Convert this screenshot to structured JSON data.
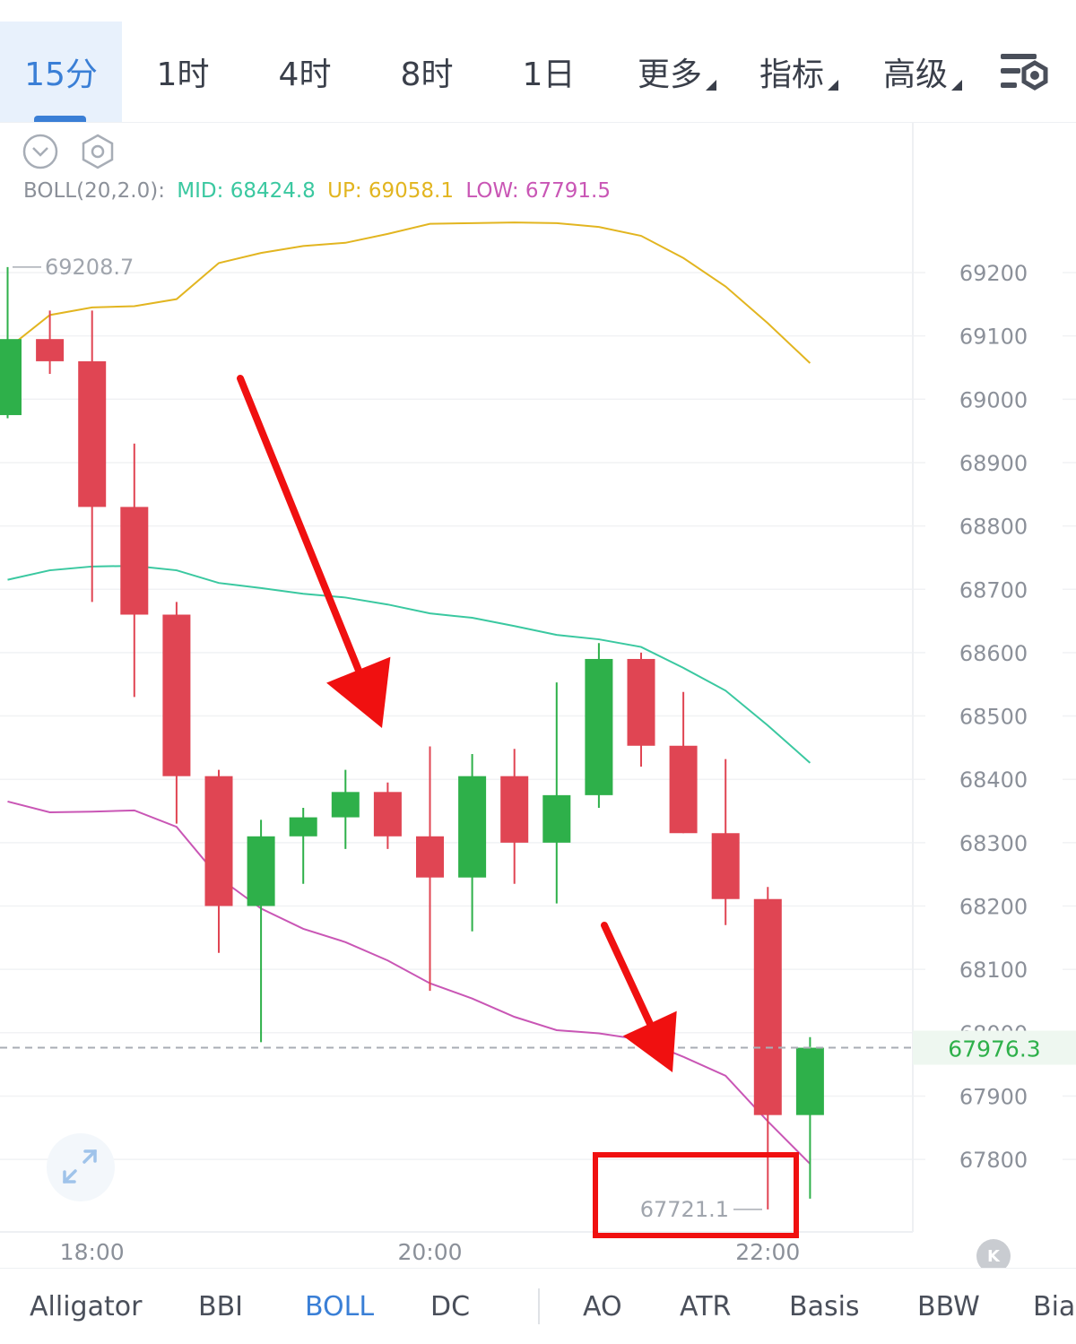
{
  "timeframe_tabs": [
    {
      "label": "15分",
      "active": true
    },
    {
      "label": "1时"
    },
    {
      "label": "4时"
    },
    {
      "label": "8时"
    },
    {
      "label": "1日"
    },
    {
      "label": "更多",
      "dropdown": true
    },
    {
      "label": "指标",
      "dropdown": true
    },
    {
      "label": "高级",
      "dropdown": true
    }
  ],
  "indicator": {
    "name": "BOLL(20,2.0):",
    "mid_label": "MID:",
    "mid_value": "68424.8",
    "up_label": "UP:",
    "up_value": "69058.1",
    "low_label": "LOW:",
    "low_value": "67791.5"
  },
  "colors": {
    "accent": "#3a7fd6",
    "up_candle": "#2eb04a",
    "down_candle": "#e04553",
    "boll_mid": "#3ac8a0",
    "boll_up": "#e2b520",
    "boll_low": "#c956b5",
    "annotation": "#f01010"
  },
  "chart_data": {
    "type": "candlestick",
    "y_ticks": [
      69200,
      69100,
      69000,
      68900,
      68800,
      68700,
      68600,
      68500,
      68400,
      68300,
      68200,
      68100,
      68000,
      67900,
      67800
    ],
    "x_labels": [
      "18:00",
      "20:00",
      "22:00"
    ],
    "high_marker": "69208.7",
    "low_marker": "67721.1",
    "last_price": "67976.3",
    "last_price_value": 67976.3,
    "candles": [
      {
        "o": 68975,
        "h": 69208.7,
        "l": 68970,
        "c": 69095
      },
      {
        "o": 69095,
        "h": 69140,
        "l": 69040,
        "c": 69060
      },
      {
        "o": 69060,
        "h": 69140,
        "l": 68680,
        "c": 68830
      },
      {
        "o": 68830,
        "h": 68930,
        "l": 68530,
        "c": 68660
      },
      {
        "o": 68660,
        "h": 68680,
        "l": 68330,
        "c": 68405
      },
      {
        "o": 68405,
        "h": 68415,
        "l": 68126,
        "c": 68200
      },
      {
        "o": 68200,
        "h": 68336,
        "l": 67985,
        "c": 68310
      },
      {
        "o": 68310,
        "h": 68355,
        "l": 68235,
        "c": 68340
      },
      {
        "o": 68340,
        "h": 68415,
        "l": 68290,
        "c": 68380
      },
      {
        "o": 68380,
        "h": 68395,
        "l": 68290,
        "c": 68310
      },
      {
        "o": 68310,
        "h": 68452,
        "l": 68066,
        "c": 68245
      },
      {
        "o": 68245,
        "h": 68440,
        "l": 68160,
        "c": 68405
      },
      {
        "o": 68405,
        "h": 68448,
        "l": 68235,
        "c": 68300
      },
      {
        "o": 68300,
        "h": 68553,
        "l": 68204,
        "c": 68375
      },
      {
        "o": 68375,
        "h": 68615,
        "l": 68355,
        "c": 68590
      },
      {
        "o": 68590,
        "h": 68600,
        "l": 68420,
        "c": 68453
      },
      {
        "o": 68453,
        "h": 68538,
        "l": 68315,
        "c": 68315
      },
      {
        "o": 68315,
        "h": 68432,
        "l": 68170,
        "c": 68211
      },
      {
        "o": 68211,
        "h": 68230,
        "l": 67721.1,
        "c": 67870
      },
      {
        "o": 67870,
        "h": 67993,
        "l": 67738,
        "c": 67976.3
      }
    ],
    "boll_up": [
      69080,
      69133,
      69145,
      69147,
      69158,
      69215,
      69231,
      69242,
      69247,
      69261,
      69277,
      69278,
      69279,
      69278,
      69272,
      69258,
      69223,
      69178,
      69120,
      69057
    ],
    "boll_mid": [
      68715,
      68730,
      68736,
      68737,
      68730,
      68710,
      68702,
      68693,
      68687,
      68676,
      68662,
      68655,
      68642,
      68628,
      68621,
      68609,
      68576,
      68540,
      68485,
      68426
    ],
    "boll_low": [
      68365,
      68348,
      68349,
      68351,
      68325,
      68245,
      68196,
      68164,
      68143,
      68114,
      68078,
      68054,
      68025,
      68004,
      67999,
      67989,
      67962,
      67932,
      67860,
      67793
    ]
  },
  "bottom_tabs": [
    {
      "label": "Alligator"
    },
    {
      "label": "BBI"
    },
    {
      "label": "BOLL",
      "active": true
    },
    {
      "label": "DC"
    },
    {
      "label": "AO"
    },
    {
      "label": "ATR"
    },
    {
      "label": "Basis"
    },
    {
      "label": "BBW"
    },
    {
      "label": "Bias"
    }
  ]
}
